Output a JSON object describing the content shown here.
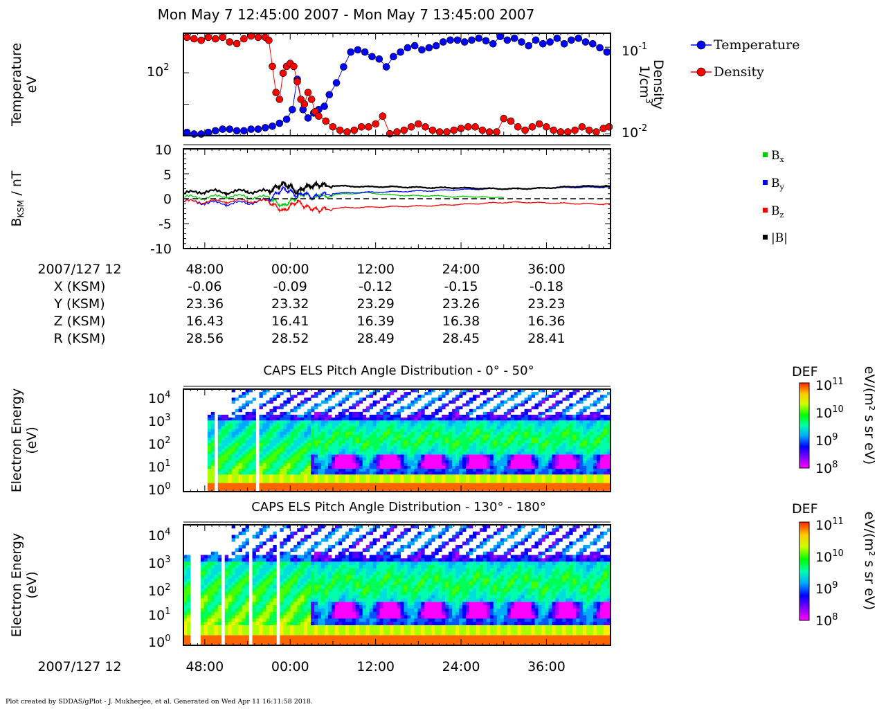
{
  "title": "Mon May 7 12:45:00 2007 - Mon May 7 13:45:00 2007",
  "footer": "Plot created by SDDAS/gPlot - J. Mukherjee, et al.  Generated on Wed Apr 11 16:11:58 2018.",
  "colors": {
    "temperature": "#0000ff",
    "density": "#ff0000",
    "bx": "#00cc00",
    "by": "#0000ff",
    "bz": "#ff0000",
    "btot": "#000000"
  },
  "x_ticks": [
    "48:00",
    "00:00",
    "12:00",
    "24:00",
    "36:00"
  ],
  "ephemeris": {
    "rows": [
      {
        "label": "2007/127 12",
        "values": [
          "48:00",
          "00:00",
          "12:00",
          "24:00",
          "36:00"
        ]
      },
      {
        "label": "X (KSM)",
        "values": [
          "-0.06",
          "-0.09",
          "-0.12",
          "-0.15",
          "-0.18"
        ]
      },
      {
        "label": "Y (KSM)",
        "values": [
          "23.36",
          "23.32",
          "23.29",
          "23.26",
          "23.23"
        ]
      },
      {
        "label": "Z (KSM)",
        "values": [
          "16.43",
          "16.41",
          "16.39",
          "16.38",
          "16.36"
        ]
      },
      {
        "label": "R (KSM)",
        "values": [
          "28.56",
          "28.52",
          "28.49",
          "28.45",
          "28.41"
        ]
      }
    ],
    "bottom_label": "2007/127 12"
  },
  "chart_data": [
    {
      "type": "line",
      "panel": "plasma-moments",
      "ylabel_left": [
        "Temperature",
        "eV"
      ],
      "ylabel_right": [
        "Density",
        "1/cm",
        "3"
      ],
      "left_tick": {
        "base": "10",
        "exp": "2"
      },
      "right_ticks": [
        {
          "base": "10",
          "exp": "-1"
        },
        {
          "base": "10",
          "exp": "-2"
        }
      ],
      "yscale": "log",
      "t_range_min": [
        45,
        105
      ],
      "temperature_range_eV": [
        36,
        190
      ],
      "density_range": [
        0.0095,
        0.145
      ],
      "legend": [
        "Temperature",
        "Density"
      ],
      "series": [
        {
          "name": "Temperature",
          "t": [
            45.5,
            46.5,
            47.5,
            48.5,
            49.5,
            50.5,
            51.5,
            52.5,
            53.5,
            54.5,
            55.5,
            56.5,
            57.5,
            58.5,
            59.5,
            60.3,
            61.0,
            61.8,
            62.5,
            63.3,
            64.0,
            64.8,
            65.5,
            66.5,
            67.5,
            68.5,
            69.5,
            70.5,
            71.5,
            72.5,
            73.5,
            74.5,
            75.5,
            76.5,
            77.5,
            78.5,
            79.5,
            80.5,
            81.5,
            82.5,
            83.5,
            84.5,
            85.5,
            86.5,
            87.5,
            88.5,
            89.5,
            90.5,
            91.5,
            92.5,
            93.5,
            94.5,
            95.5,
            96.5,
            97.5,
            98.5,
            99.5,
            100.5,
            101.5,
            102.5,
            103.5,
            104.5
          ],
          "values": [
            38,
            37,
            37,
            38,
            39,
            40,
            40,
            39,
            39,
            40,
            40,
            41,
            42,
            44,
            47,
            55,
            90,
            55,
            48,
            52,
            55,
            58,
            70,
            85,
            110,
            140,
            145,
            140,
            130,
            125,
            110,
            130,
            140,
            150,
            155,
            145,
            150,
            155,
            165,
            170,
            170,
            165,
            170,
            175,
            168,
            160,
            180,
            170,
            175,
            165,
            155,
            170,
            160,
            165,
            175,
            160,
            170,
            175,
            165,
            160,
            150,
            140
          ]
        },
        {
          "name": "Density",
          "t": [
            45.5,
            46.5,
            47.5,
            48.5,
            49.5,
            50.5,
            51.5,
            52.5,
            53.5,
            54.5,
            55.5,
            56.5,
            57.0,
            57.5,
            58.0,
            58.5,
            59.0,
            59.5,
            60.0,
            60.5,
            61.0,
            61.5,
            62.0,
            62.5,
            63.0,
            63.5,
            64.0,
            65.0,
            66.0,
            67.0,
            68.0,
            69.0,
            70.0,
            71.0,
            72.0,
            73.0,
            74.0,
            75.0,
            76.0,
            77.0,
            78.0,
            79.0,
            80.0,
            81.0,
            82.0,
            83.0,
            84.0,
            85.0,
            86.0,
            87.0,
            88.0,
            89.0,
            90.0,
            91.0,
            92.0,
            93.0,
            94.0,
            95.0,
            96.0,
            97.0,
            98.0,
            99.0,
            100.0,
            101.0,
            102.0,
            103.0,
            104.0,
            104.8
          ],
          "values": [
            0.13,
            0.125,
            0.12,
            0.13,
            0.125,
            0.13,
            0.115,
            0.11,
            0.125,
            0.135,
            0.13,
            0.13,
            0.12,
            0.06,
            0.03,
            0.025,
            0.05,
            0.06,
            0.065,
            0.06,
            0.04,
            0.025,
            0.022,
            0.03,
            0.025,
            0.018,
            0.016,
            0.014,
            0.012,
            0.011,
            0.0105,
            0.011,
            0.012,
            0.012,
            0.013,
            0.016,
            0.01,
            0.0105,
            0.011,
            0.012,
            0.013,
            0.012,
            0.011,
            0.0105,
            0.0105,
            0.011,
            0.0115,
            0.012,
            0.012,
            0.011,
            0.0105,
            0.0105,
            0.015,
            0.014,
            0.012,
            0.011,
            0.012,
            0.013,
            0.012,
            0.011,
            0.0105,
            0.0105,
            0.011,
            0.012,
            0.011,
            0.0105,
            0.0115,
            0.012
          ]
        }
      ]
    },
    {
      "type": "line",
      "panel": "magnetic-field",
      "ylabel": [
        "B",
        "KSM",
        " / nT"
      ],
      "ylim": [
        -10,
        10
      ],
      "yticks": [
        "10",
        "5",
        "0",
        "-5",
        "-10"
      ],
      "t_range_min": [
        45,
        105
      ],
      "legend": [
        {
          "base": "B",
          "sub": "x"
        },
        {
          "base": "B",
          "sub": "y"
        },
        {
          "base": "B",
          "sub": "z"
        },
        {
          "base": "|B|",
          "sub": ""
        }
      ],
      "series": [
        {
          "name": "Bx",
          "t": [
            45,
            48,
            51,
            54,
            57,
            58,
            59,
            60,
            61,
            62,
            63,
            65,
            68,
            71,
            74,
            77,
            80,
            83,
            86,
            88,
            90,
            92,
            94,
            96,
            98,
            100,
            102,
            104,
            105
          ],
          "values": [
            0.3,
            0.2,
            0.5,
            0.4,
            0.2,
            -0.6,
            -1.5,
            -0.5,
            0.3,
            1.0,
            0.2,
            0.6,
            1.0,
            1.2,
            0.8,
            0.6,
            0.6,
            0.4,
            0.4,
            0.3,
            0.2,
            null,
            null,
            null,
            null,
            null,
            null,
            null,
            null
          ]
        },
        {
          "name": "By",
          "t": [
            45,
            48,
            51,
            54,
            57,
            58,
            59,
            60,
            61,
            62,
            63,
            64,
            65,
            68,
            71,
            74,
            77,
            80,
            83,
            86,
            89,
            92,
            95,
            98,
            101,
            104,
            105
          ],
          "values": [
            -0.5,
            -0.8,
            -1.0,
            -0.8,
            -0.3,
            1.0,
            2.0,
            1.5,
            0.5,
            1.2,
            0.2,
            0.6,
            1.0,
            1.2,
            1.3,
            1.4,
            1.5,
            1.6,
            1.8,
            1.9,
            2.0,
            2.0,
            2.1,
            2.2,
            2.3,
            2.3,
            2.3
          ]
        },
        {
          "name": "Bz",
          "t": [
            45,
            48,
            51,
            54,
            57,
            58,
            59,
            60,
            61,
            62,
            63,
            64,
            65,
            68,
            71,
            74,
            77,
            80,
            83,
            86,
            89,
            92,
            95,
            98,
            101,
            104,
            105
          ],
          "values": [
            -0.6,
            -0.6,
            -0.5,
            -0.4,
            -0.6,
            -1.5,
            -2.5,
            -1.5,
            -0.5,
            -1.5,
            -2.0,
            -2.3,
            -2.0,
            -1.8,
            -1.7,
            -1.6,
            -1.5,
            -1.4,
            -1.2,
            -1.0,
            -0.8,
            -0.7,
            -0.8,
            -0.9,
            -1.0,
            -1.1,
            -1.1
          ]
        },
        {
          "name": "|B|",
          "t": [
            45,
            48,
            51,
            54,
            57,
            58,
            59,
            60,
            61,
            62,
            63,
            64,
            65,
            68,
            71,
            74,
            77,
            80,
            83,
            86,
            89,
            92,
            95,
            98,
            101,
            104,
            105
          ],
          "values": [
            1.0,
            1.5,
            1.3,
            1.5,
            1.4,
            2.3,
            3.0,
            2.5,
            1.2,
            2.3,
            2.5,
            2.8,
            2.7,
            2.5,
            2.4,
            2.4,
            2.3,
            2.2,
            2.2,
            2.1,
            2.0,
            2.0,
            2.1,
            2.3,
            2.5,
            2.5,
            2.5
          ]
        }
      ]
    },
    {
      "type": "heatmap",
      "panel": "els-pad-low",
      "title": "CAPS ELS Pitch Angle Distribution - 0° - 50°",
      "ylabel": [
        "Electron Energy",
        "(eV)"
      ],
      "yticks": [
        {
          "base": "10",
          "exp": "4"
        },
        {
          "base": "10",
          "exp": "3"
        },
        {
          "base": "10",
          "exp": "2"
        },
        {
          "base": "10",
          "exp": "1"
        },
        {
          "base": "10",
          "exp": "0"
        }
      ],
      "energy_range_eV": [
        0.6,
        30000
      ],
      "colorbar": {
        "title": "DEF",
        "ticks": [
          {
            "base": "10",
            "exp": "11"
          },
          {
            "base": "10",
            "exp": "10"
          },
          {
            "base": "10",
            "exp": "9"
          },
          {
            "base": "10",
            "exp": "8"
          }
        ],
        "unit": "eV/(m² s sr eV)"
      }
    },
    {
      "type": "heatmap",
      "panel": "els-pad-high",
      "title": "CAPS ELS Pitch Angle Distribution - 130° - 180°",
      "ylabel": [
        "Electron Energy",
        "(eV)"
      ],
      "yticks": [
        {
          "base": "10",
          "exp": "4"
        },
        {
          "base": "10",
          "exp": "3"
        },
        {
          "base": "10",
          "exp": "2"
        },
        {
          "base": "10",
          "exp": "1"
        },
        {
          "base": "10",
          "exp": "0"
        }
      ],
      "energy_range_eV": [
        0.6,
        30000
      ],
      "colorbar": {
        "title": "DEF",
        "ticks": [
          {
            "base": "10",
            "exp": "11"
          },
          {
            "base": "10",
            "exp": "10"
          },
          {
            "base": "10",
            "exp": "9"
          },
          {
            "base": "10",
            "exp": "8"
          }
        ],
        "unit": "eV/(m² s sr eV)"
      }
    }
  ]
}
